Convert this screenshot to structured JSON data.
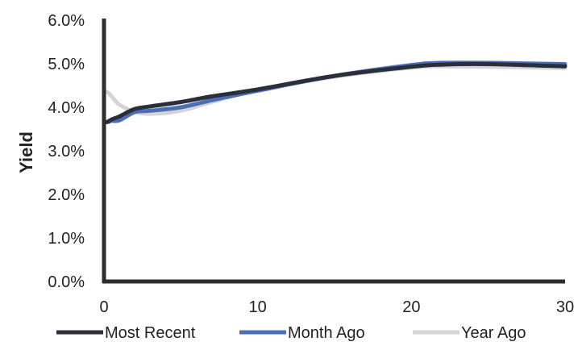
{
  "chart_data": {
    "type": "line",
    "title": "",
    "xlabel": "",
    "ylabel": "Yield",
    "xlim": [
      0,
      30
    ],
    "ylim": [
      0,
      6
    ],
    "x_ticks": [
      "0",
      "10",
      "20",
      "30"
    ],
    "x_tick_values": [
      0,
      10,
      20,
      30
    ],
    "y_ticks": [
      "0.0%",
      "1.0%",
      "2.0%",
      "3.0%",
      "4.0%",
      "5.0%",
      "6.0%"
    ],
    "y_tick_values": [
      0,
      1,
      2,
      3,
      4,
      5,
      6
    ],
    "grid": false,
    "legend_position": "bottom",
    "series": [
      {
        "name": "Most Recent",
        "color": "#2b2f3c",
        "points": [
          [
            0.083,
            3.66
          ],
          [
            0.25,
            3.67
          ],
          [
            0.5,
            3.72
          ],
          [
            1,
            3.79
          ],
          [
            2,
            3.96
          ],
          [
            3,
            4.02
          ],
          [
            5,
            4.12
          ],
          [
            7,
            4.25
          ],
          [
            10,
            4.41
          ],
          [
            15,
            4.72
          ],
          [
            20,
            4.93
          ],
          [
            22,
            4.98
          ],
          [
            25,
            4.99
          ],
          [
            30,
            4.94
          ]
        ]
      },
      {
        "name": "Month Ago",
        "color": "#4a6fb5",
        "points": [
          [
            0.083,
            3.66
          ],
          [
            0.25,
            3.66
          ],
          [
            0.5,
            3.69
          ],
          [
            1,
            3.7
          ],
          [
            2,
            3.89
          ],
          [
            3,
            3.92
          ],
          [
            5,
            4.0
          ],
          [
            7,
            4.16
          ],
          [
            10,
            4.38
          ],
          [
            15,
            4.72
          ],
          [
            20,
            4.97
          ],
          [
            22,
            5.02
          ],
          [
            25,
            5.02
          ],
          [
            30,
            4.99
          ]
        ]
      },
      {
        "name": "Year Ago",
        "color": "#d4d4d4",
        "points": [
          [
            0.083,
            4.36
          ],
          [
            0.25,
            4.34
          ],
          [
            0.5,
            4.25
          ],
          [
            1,
            4.06
          ],
          [
            2,
            3.9
          ],
          [
            3,
            3.85
          ],
          [
            5,
            3.92
          ],
          [
            7,
            4.12
          ],
          [
            10,
            4.4
          ],
          [
            15,
            4.7
          ],
          [
            20,
            4.91
          ],
          [
            22,
            4.94
          ],
          [
            25,
            4.93
          ],
          [
            30,
            4.9
          ]
        ]
      }
    ]
  }
}
